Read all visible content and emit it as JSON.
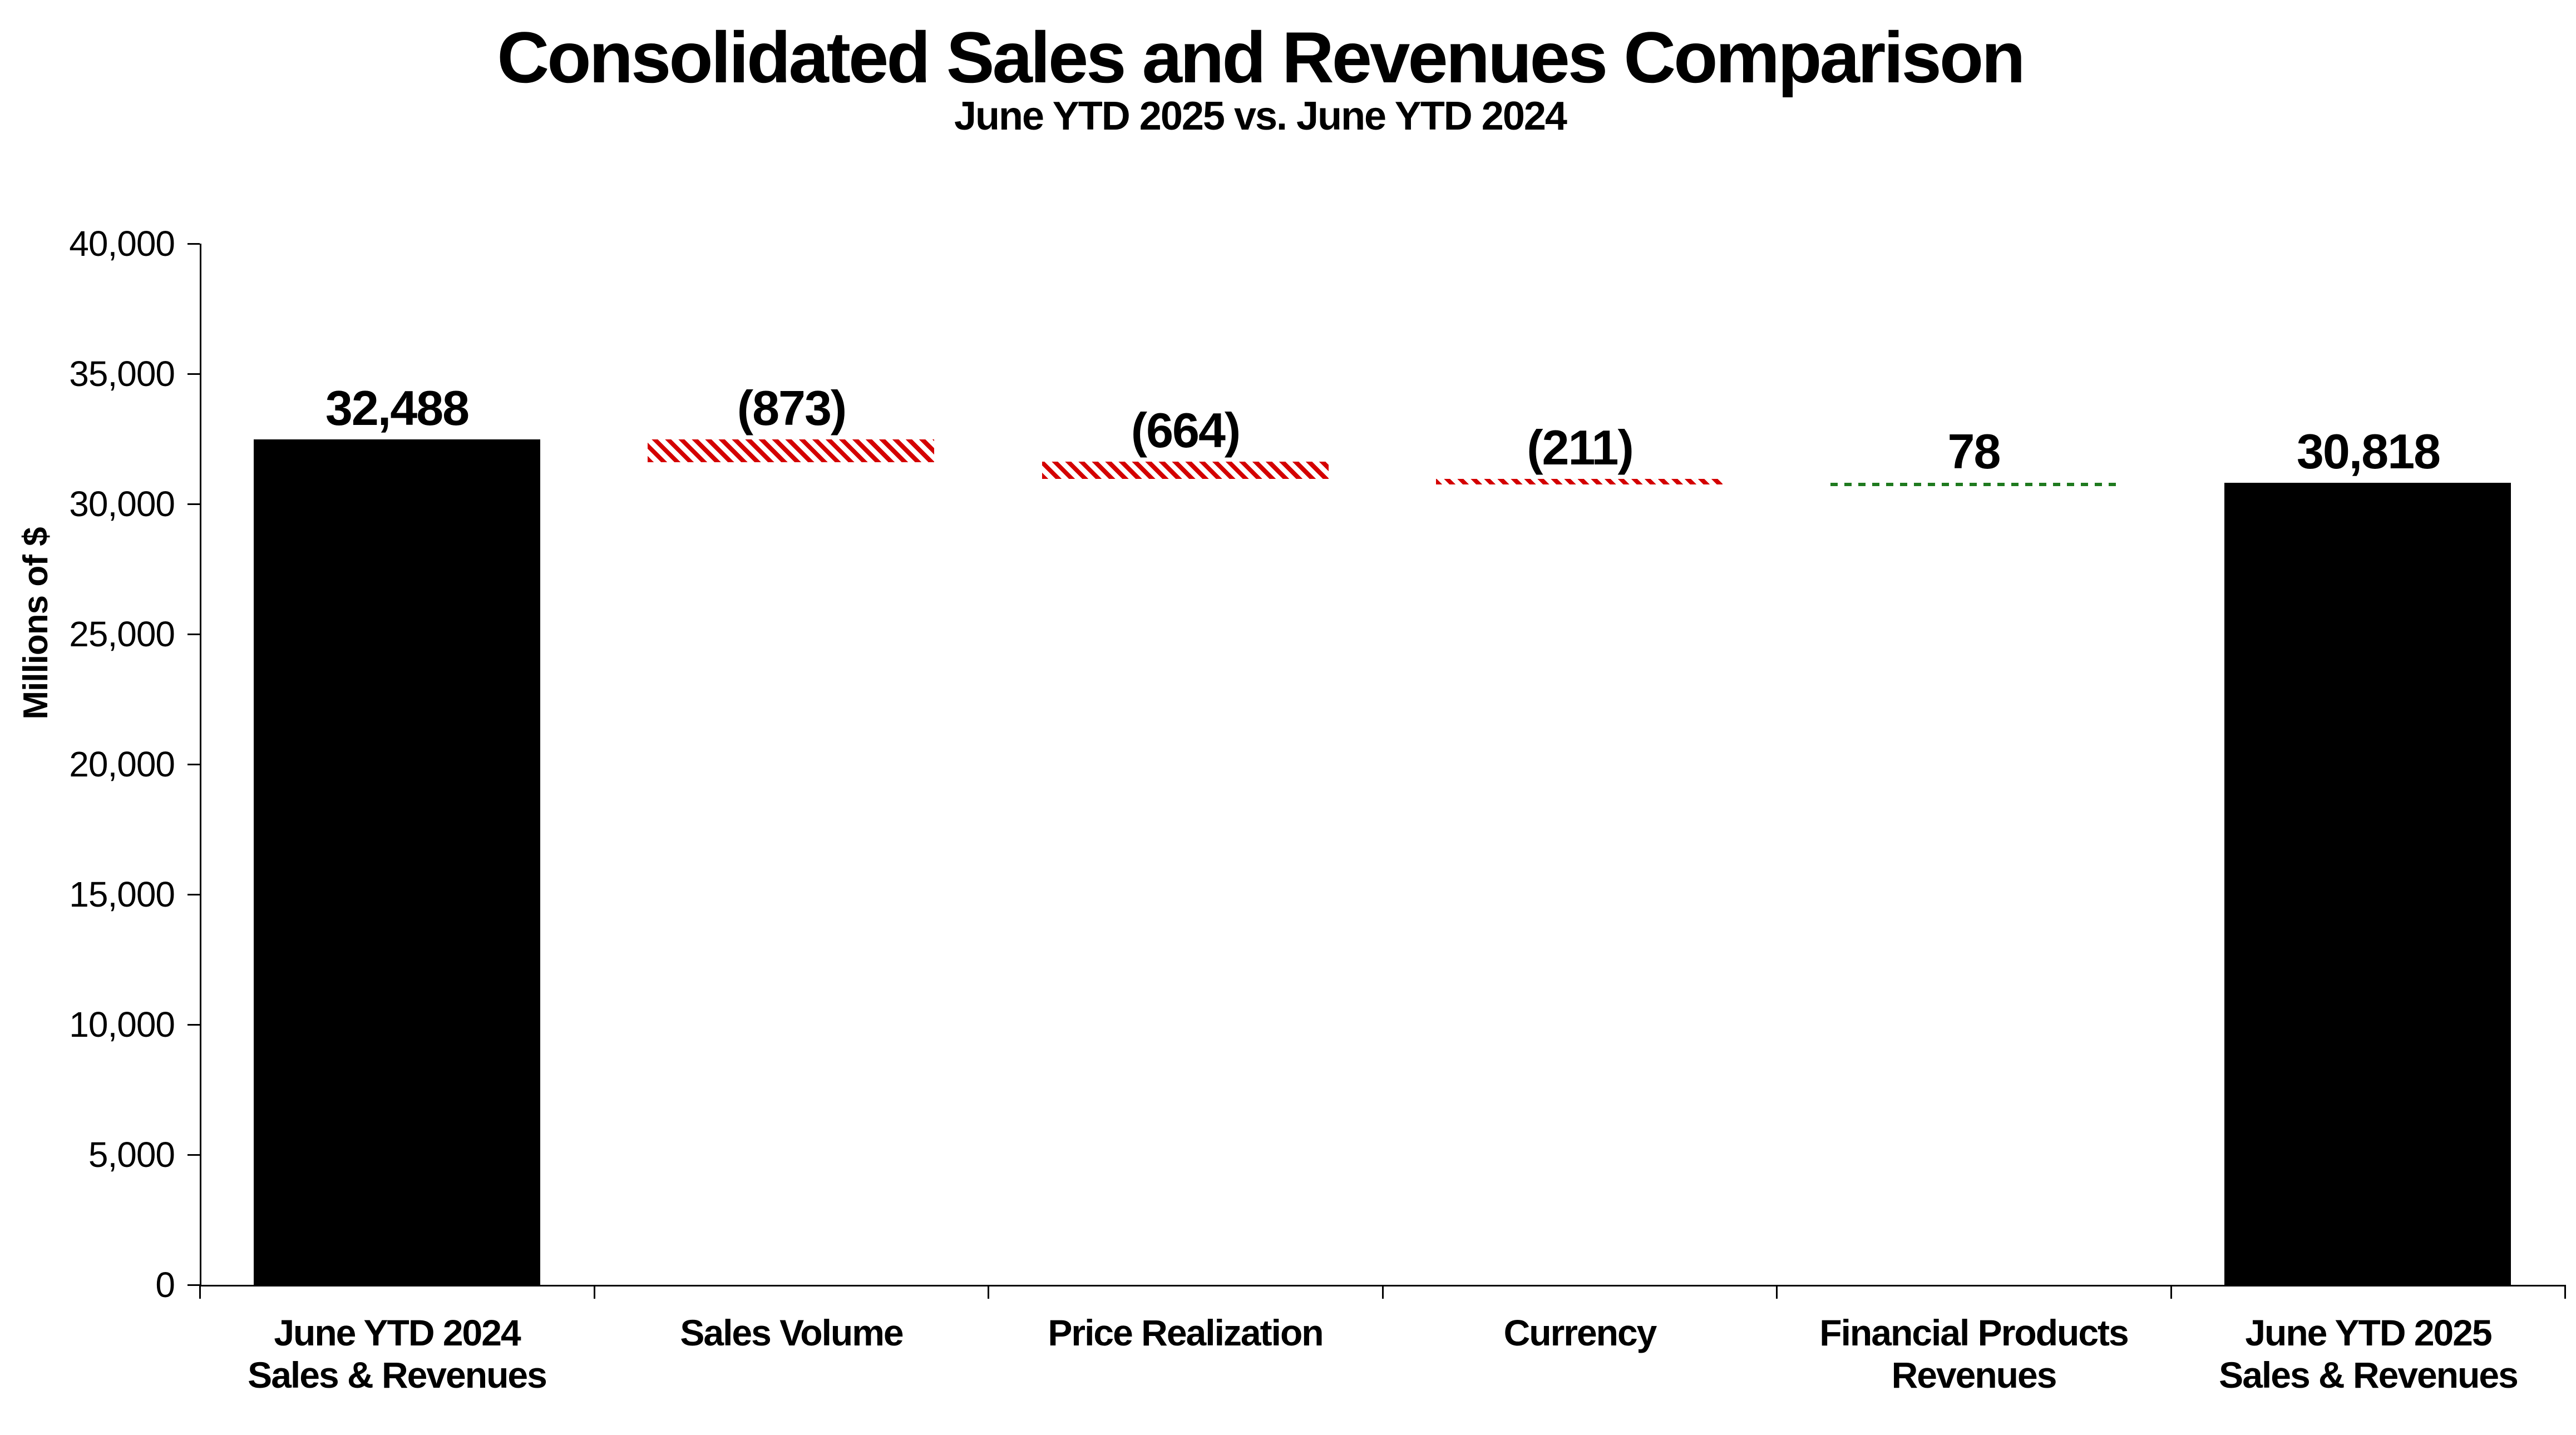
{
  "title": "Consolidated Sales and Revenues Comparison",
  "subtitle": "June YTD 2025 vs. June YTD 2024",
  "chart_data": {
    "type": "bar",
    "subtype": "waterfall",
    "title": "Consolidated Sales and Revenues Comparison",
    "subtitle": "June YTD 2025 vs. June YTD 2024",
    "xlabel": "",
    "ylabel": "Millions of $",
    "ylim": [
      0,
      40000
    ],
    "ytick_step": 5000,
    "ytick_labels": [
      "0",
      "5,000",
      "10,000",
      "15,000",
      "20,000",
      "25,000",
      "30,000",
      "35,000",
      "40,000"
    ],
    "gridlines": false,
    "legend": false,
    "categories": [
      "June YTD 2024 Sales & Revenues",
      "Sales Volume",
      "Price Realization",
      "Currency",
      "Financial Products Revenues",
      "June YTD 2025 Sales & Revenues"
    ],
    "bars": [
      {
        "label_lines": [
          "June YTD 2024",
          "Sales & Revenues"
        ],
        "value": 32488,
        "display": "32,488",
        "start": 0,
        "end": 32488,
        "style": "solid-black"
      },
      {
        "label_lines": [
          "Sales Volume"
        ],
        "value": -873,
        "display": "(873)",
        "start": 32488,
        "end": 31615,
        "style": "red-hatch"
      },
      {
        "label_lines": [
          "Price Realization"
        ],
        "value": -664,
        "display": "(664)",
        "start": 31615,
        "end": 30951,
        "style": "red-hatch"
      },
      {
        "label_lines": [
          "Currency"
        ],
        "value": -211,
        "display": "(211)",
        "start": 30951,
        "end": 30740,
        "style": "red-hatch"
      },
      {
        "label_lines": [
          "Financial Products",
          "Revenues"
        ],
        "value": 78,
        "display": "78",
        "start": 30740,
        "end": 30818,
        "style": "green-dash"
      },
      {
        "label_lines": [
          "June YTD 2025",
          "Sales & Revenues"
        ],
        "value": 30818,
        "display": "30,818",
        "start": 0,
        "end": 30818,
        "style": "solid-black"
      }
    ],
    "colors": {
      "decrease_hatch_red": "#d40000",
      "increase_dash_green": "#1f7a1f",
      "total_bar_black": "#000000",
      "text": "#000000",
      "background": "#ffffff"
    }
  }
}
